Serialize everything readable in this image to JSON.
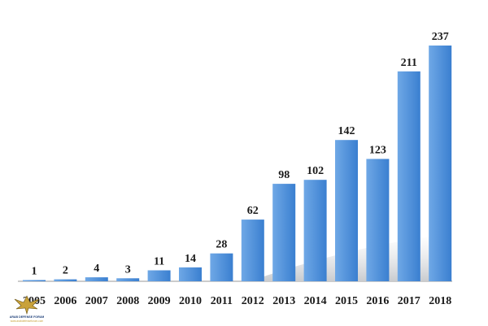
{
  "chart_data": {
    "type": "bar",
    "categories": [
      "2005",
      "2006",
      "2007",
      "2008",
      "2009",
      "2010",
      "2011",
      "2012",
      "2013",
      "2014",
      "2015",
      "2016",
      "2017",
      "2018"
    ],
    "values": [
      1,
      2,
      4,
      3,
      11,
      14,
      28,
      62,
      98,
      102,
      142,
      123,
      211,
      237
    ],
    "title": "",
    "xlabel": "",
    "ylabel": "",
    "ylim": [
      0,
      240
    ],
    "grid": false,
    "legend": "none",
    "bar_color": "#3a7fd0",
    "bar_color_light": "#6fa8e6",
    "data_labels": true
  },
  "watermark": {
    "line1": "ARAB DEFENSE FORUM",
    "line2": "www.arabdefenseforum.com"
  }
}
